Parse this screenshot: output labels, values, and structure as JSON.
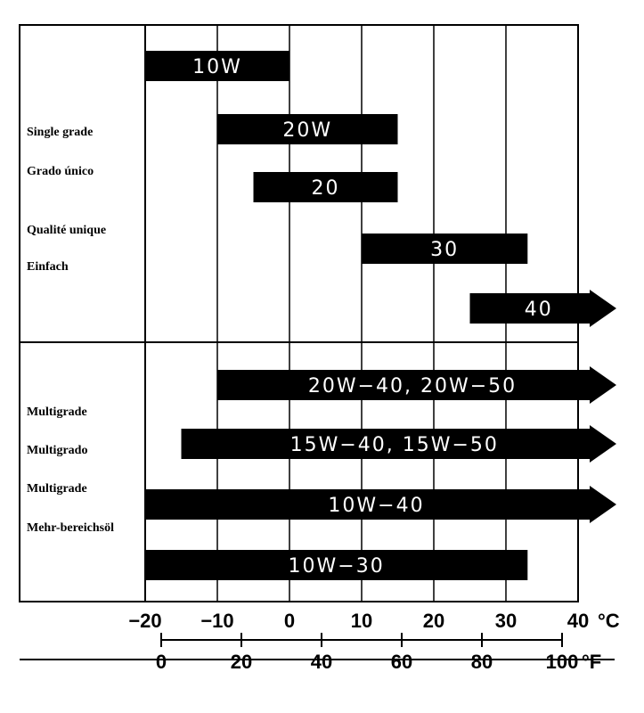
{
  "chart_data": {
    "type": "range-bar",
    "x_unit_c": "°C",
    "x_unit_f": "°F",
    "celsius_ticks": [
      "−20",
      "−10",
      "0",
      "10",
      "20",
      "30",
      "40"
    ],
    "fahrenheit_ticks": [
      "0",
      "20",
      "40",
      "60",
      "80",
      "100"
    ],
    "sections": [
      {
        "labels": [
          "Single grade",
          "Grado único",
          "Qualité unique",
          "Einfach"
        ],
        "bars": [
          {
            "label": "10W",
            "from_c": -20,
            "to_c": 0,
            "open_ended": false
          },
          {
            "label": "20W",
            "from_c": -10,
            "to_c": 15,
            "open_ended": false
          },
          {
            "label": "20",
            "from_c": -5,
            "to_c": 15,
            "open_ended": false
          },
          {
            "label": "30",
            "from_c": 10,
            "to_c": 33,
            "open_ended": false
          },
          {
            "label": "40",
            "from_c": 25,
            "to_c": 40,
            "open_ended": true
          }
        ]
      },
      {
        "labels": [
          "Multigrade",
          "Multigrado",
          "Multigrade",
          "Mehr-bereichsöl"
        ],
        "bars": [
          {
            "label": "20W−40, 20W−50",
            "from_c": -10,
            "to_c": 40,
            "open_ended": true
          },
          {
            "label": "15W−40, 15W−50",
            "from_c": -15,
            "to_c": 40,
            "open_ended": true
          },
          {
            "label": "10W−40",
            "from_c": -20,
            "to_c": 40,
            "open_ended": true
          },
          {
            "label": "10W−30",
            "from_c": -20,
            "to_c": 33,
            "open_ended": false
          }
        ]
      }
    ]
  }
}
